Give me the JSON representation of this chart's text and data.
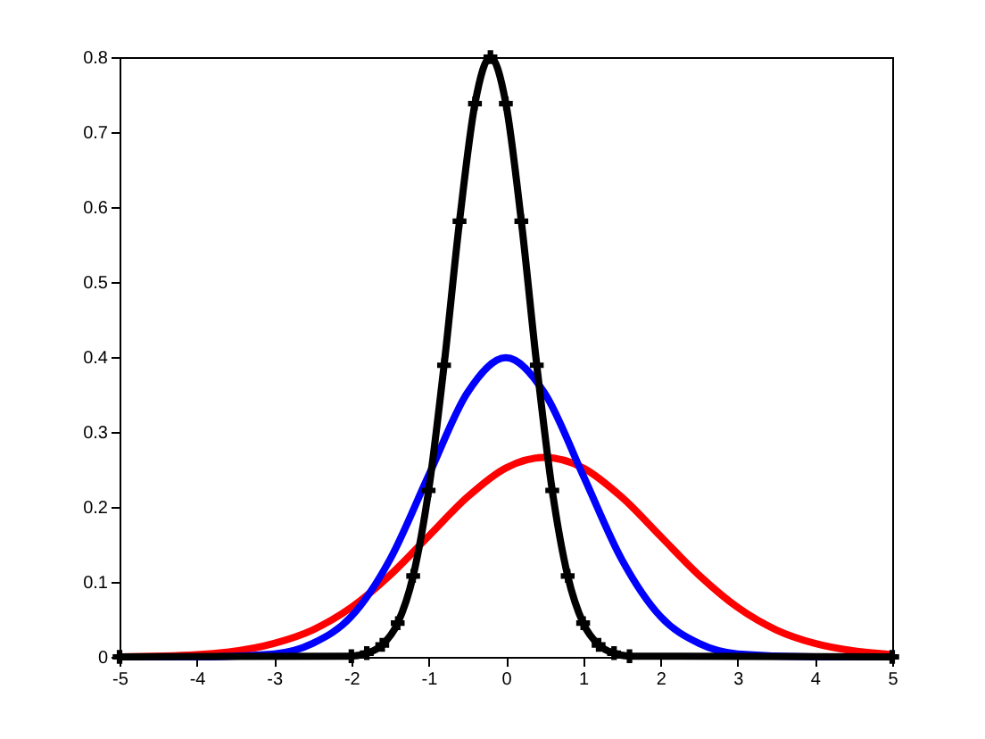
{
  "chart_data": {
    "type": "line",
    "xlim": [
      -5,
      5
    ],
    "xticks": [
      -5,
      -4,
      -3,
      -2,
      -1,
      0,
      1,
      2,
      3,
      4,
      5
    ],
    "ylim": [
      0,
      0.8
    ],
    "yticks": [
      0,
      0.1,
      0.2,
      0.3,
      0.4,
      0.5,
      0.6,
      0.7,
      0.8
    ],
    "grid": false,
    "series": [
      {
        "color": "#ff0000",
        "x": [
          -5,
          -4,
          -3,
          -2.5,
          -2,
          -1.5,
          -1,
          -0.5,
          0,
          0.5,
          1,
          1.5,
          2,
          2.5,
          3,
          3.5,
          4,
          4.5,
          5
        ],
        "values": [
          0,
          0.003,
          0.018,
          0.036,
          0.066,
          0.109,
          0.161,
          0.213,
          0.252,
          0.266,
          0.252,
          0.213,
          0.161,
          0.109,
          0.066,
          0.036,
          0.018,
          0.008,
          0.003
        ]
      },
      {
        "color": "#0000ff",
        "x": [
          -5,
          -4,
          -3,
          -2.5,
          -2,
          -1.5,
          -1,
          -0.5,
          0,
          0.5,
          1,
          1.5,
          2,
          2.5,
          3,
          4,
          5
        ],
        "values": [
          0,
          0,
          0.004,
          0.018,
          0.054,
          0.13,
          0.242,
          0.352,
          0.399,
          0.352,
          0.242,
          0.13,
          0.054,
          0.018,
          0.004,
          0,
          0
        ]
      },
      {
        "color": "#000000",
        "marker": "cross",
        "x": [
          -5,
          -2,
          -1.8,
          -1.6,
          -1.4,
          -1.2,
          -1,
          -0.8,
          -0.6,
          -0.4,
          -0.2,
          0,
          0.2,
          0.4,
          0.6,
          0.8,
          1,
          1.2,
          1.4,
          1.6,
          5
        ],
        "values": [
          0,
          0.001,
          0.005,
          0.016,
          0.045,
          0.108,
          0.222,
          0.389,
          0.581,
          0.738,
          0.8,
          0.738,
          0.581,
          0.389,
          0.222,
          0.108,
          0.045,
          0.016,
          0.005,
          0.001,
          0
        ]
      }
    ]
  }
}
